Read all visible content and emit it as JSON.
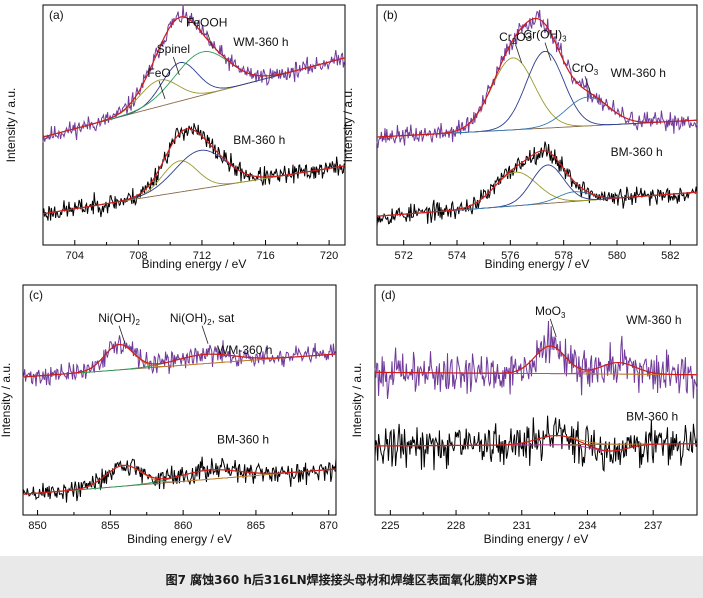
{
  "caption": "图7   腐蚀360 h后316LN焊接接头母材和焊缝区表面氧化膜的XPS谱",
  "colors": {
    "wm_raw": "#6f3a9a",
    "bm_raw": "#000000",
    "envelope": "#d21a1a",
    "comp_blue": "#2f3d8f",
    "comp_olive": "#9a9a2e",
    "comp_green": "#2f9a5a",
    "comp_magenta": "#c03aa6",
    "comp_cyan": "#3a7ab0",
    "comp_orange": "#c87a2a",
    "background_line": "#8a6a4a"
  },
  "chart_data": [
    {
      "type": "line",
      "panel": "(a)",
      "xlabel": "Binding energy  / eV",
      "ylabel": "Intensity  / a.u.",
      "xlim": [
        702,
        721
      ],
      "ylim": [
        0,
        1
      ],
      "xticks": [
        704,
        708,
        712,
        716,
        720
      ],
      "series_labels": [
        "WM-360 h",
        "BM-360 h"
      ],
      "annotations": [
        {
          "text": "FeO",
          "x": 709.3,
          "y": 0.7
        },
        {
          "text": "Spinel",
          "x": 710.2,
          "y": 0.8
        },
        {
          "text": "FeOOH",
          "x": 712.3,
          "y": 0.91
        }
      ],
      "series": [
        {
          "name": "WM-360 h",
          "baseline": [
            0.45,
            0.78
          ],
          "noise": 0.018,
          "seed": 11,
          "peaks": [
            {
              "center": 709.3,
              "height": 0.11,
              "width": 1.2
            },
            {
              "center": 710.6,
              "height": 0.16,
              "width": 1.1
            },
            {
              "center": 712.0,
              "height": 0.18,
              "width": 1.7
            }
          ]
        },
        {
          "name": "BM-360 h",
          "baseline": [
            0.13,
            0.33
          ],
          "noise": 0.02,
          "seed": 23,
          "peaks": [
            {
              "center": 710.6,
              "height": 0.13,
              "width": 1.1
            },
            {
              "center": 711.9,
              "height": 0.16,
              "width": 1.6
            }
          ]
        }
      ]
    },
    {
      "type": "line",
      "panel": "(b)",
      "xlabel": "Binding energy  / eV",
      "ylabel": "Intensity  / a.u.",
      "xlim": [
        571,
        583
      ],
      "ylim": [
        0,
        1
      ],
      "xticks": [
        572,
        574,
        576,
        578,
        580,
        582
      ],
      "series_labels": [
        "WM-360 h",
        "BM-360 h"
      ],
      "annotations": [
        {
          "text": "Cr2O3",
          "sub": "2",
          "x": 576.2,
          "y": 0.85
        },
        {
          "text": "Cr(OH)3",
          "sub": "3",
          "x": 577.3,
          "y": 0.86
        },
        {
          "text": "CrO3",
          "sub": "3",
          "x": 578.8,
          "y": 0.72
        }
      ],
      "series": [
        {
          "name": "WM-360 h",
          "baseline": [
            0.45,
            0.52
          ],
          "noise": 0.02,
          "seed": 37,
          "peaks": [
            {
              "center": 576.1,
              "height": 0.3,
              "width": 0.8
            },
            {
              "center": 577.3,
              "height": 0.32,
              "width": 0.7
            },
            {
              "center": 578.9,
              "height": 0.12,
              "width": 0.8
            }
          ]
        },
        {
          "name": "BM-360 h",
          "baseline": [
            0.12,
            0.22
          ],
          "noise": 0.02,
          "seed": 53,
          "peaks": [
            {
              "center": 576.2,
              "height": 0.14,
              "width": 0.8
            },
            {
              "center": 577.4,
              "height": 0.16,
              "width": 0.6
            },
            {
              "center": 578.4,
              "height": 0.04,
              "width": 0.6
            }
          ]
        }
      ]
    },
    {
      "type": "line",
      "panel": "(c)",
      "xlabel": "Binding energy  / eV",
      "ylabel": "Intensity  / a.u.",
      "xlim": [
        849,
        870.5
      ],
      "ylim": [
        0,
        1
      ],
      "xticks": [
        850,
        855,
        860,
        865,
        870
      ],
      "series_labels": [
        "WM-360 h",
        "BM-360 h"
      ],
      "annotations": [
        {
          "text": "Ni(OH)2",
          "sub": "2",
          "x": 855.6,
          "y": 0.84
        },
        {
          "text": "Ni(OH)2, sat",
          "sub": "2",
          "x": 861.3,
          "y": 0.84
        }
      ],
      "series": [
        {
          "name": "WM-360 h",
          "baseline": [
            0.6,
            0.7
          ],
          "noise": 0.022,
          "seed": 71,
          "peaks": [
            {
              "center": 855.6,
              "height": 0.11,
              "width": 1.0
            },
            {
              "center": 861.5,
              "height": 0.04,
              "width": 2.0
            }
          ]
        },
        {
          "name": "BM-360 h",
          "baseline": [
            0.09,
            0.2
          ],
          "noise": 0.024,
          "seed": 89,
          "peaks": [
            {
              "center": 855.9,
              "height": 0.09,
              "width": 1.2
            },
            {
              "center": 861.8,
              "height": 0.04,
              "width": 2.0
            }
          ]
        }
      ]
    },
    {
      "type": "line",
      "panel": "(d)",
      "xlabel": "Binding energy  / eV",
      "ylabel": "Intensity  / a.u.",
      "xlim": [
        224.3,
        239
      ],
      "ylim": [
        0,
        1
      ],
      "xticks": [
        225,
        228,
        231,
        234,
        237
      ],
      "series_labels": [
        "WM-360 h",
        "BM-360 h"
      ],
      "annotations": [
        {
          "text": "MoO3",
          "sub": "3",
          "x": 232.3,
          "y": 0.87
        }
      ],
      "series": [
        {
          "name": "WM-360 h",
          "baseline": [
            0.62,
            0.61
          ],
          "noise": 0.045,
          "seed": 101,
          "peaks": [
            {
              "center": 232.3,
              "height": 0.12,
              "width": 0.7
            },
            {
              "center": 235.4,
              "height": 0.05,
              "width": 0.8
            }
          ]
        },
        {
          "name": "BM-360 h",
          "baseline": [
            0.3,
            0.31
          ],
          "noise": 0.045,
          "seed": 131,
          "peaks": [
            {
              "center": 232.6,
              "height": 0.04,
              "width": 0.9
            },
            {
              "center": 235.0,
              "height": -0.03,
              "width": 0.8
            }
          ]
        }
      ]
    }
  ]
}
